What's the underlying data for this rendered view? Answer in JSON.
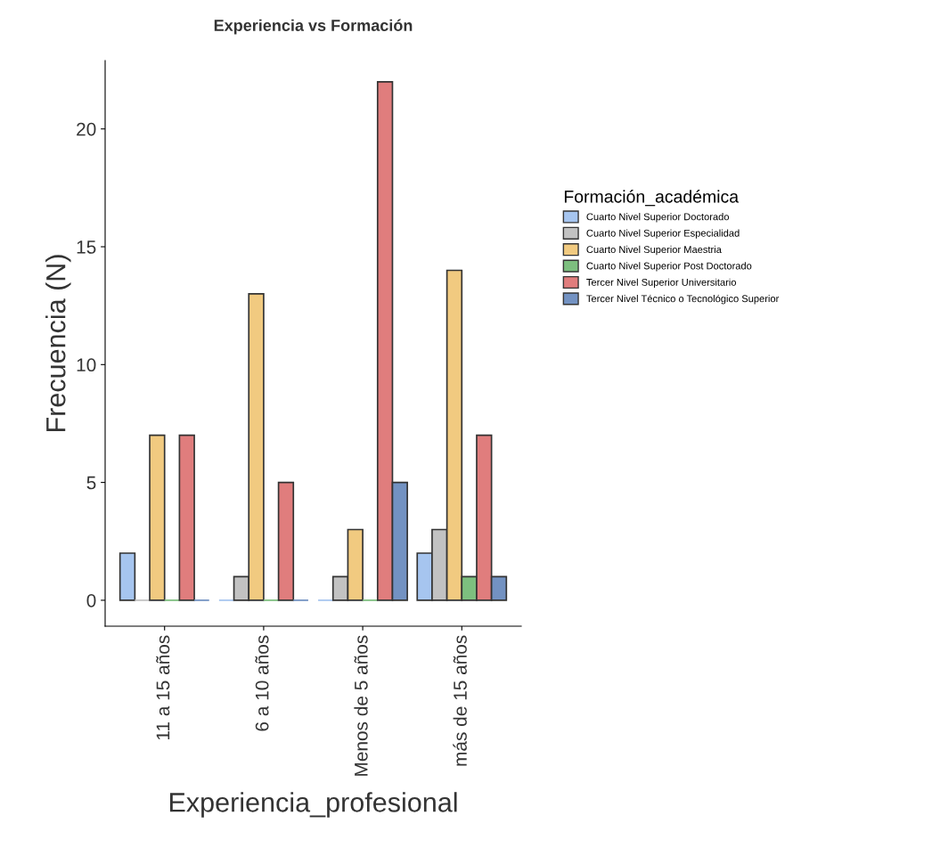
{
  "chart_data": {
    "type": "bar",
    "title": "Experiencia vs Formación",
    "xlabel": "Experiencia_profesional",
    "ylabel": "Frecuencia (N)",
    "legend_title": "Formación_académica",
    "categories": [
      "11 a 15 años",
      "6 a 10 años",
      "Menos de 5 años",
      "más de 15 años"
    ],
    "series": [
      {
        "name": "Cuarto Nivel Superior Doctorado",
        "color": "#a6c5ef",
        "values": [
          2,
          0,
          0,
          2
        ]
      },
      {
        "name": "Cuarto Nivel Superior Especialidad",
        "color": "#c2c2c2",
        "values": [
          0,
          1,
          1,
          3
        ]
      },
      {
        "name": "Cuarto Nivel Superior Maestria",
        "color": "#f1ca80",
        "values": [
          7,
          13,
          3,
          14
        ]
      },
      {
        "name": "Cuarto Nivel Superior Post Doctorado",
        "color": "#7dbf7f",
        "values": [
          0,
          0,
          0,
          1
        ]
      },
      {
        "name": "Tercer Nivel Superior Universitario",
        "color": "#e07d7d",
        "values": [
          7,
          5,
          22,
          7
        ]
      },
      {
        "name": "Tercer Nivel Técnico o Tecnológico Superior",
        "color": "#7392c2",
        "values": [
          0,
          0,
          5,
          1
        ]
      }
    ],
    "ylim": [
      -1.1,
      22.9
    ],
    "yticks": [
      0,
      5,
      10,
      15,
      20
    ],
    "grid": false,
    "legend": "right"
  }
}
